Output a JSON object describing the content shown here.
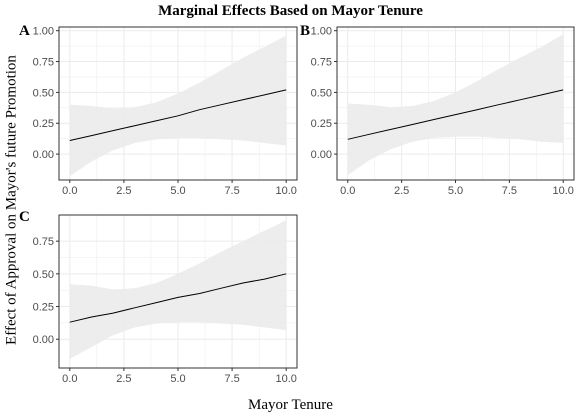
{
  "title": "Marginal Effects Based on Mayor Tenure",
  "ylabel": "Effect of Approval on Mayor's future Promotion",
  "xlabel": "Mayor Tenure",
  "colors": {
    "band": "#ebebeb",
    "line": "#000000",
    "grid": "#ebebeb",
    "border": "#333333",
    "tick_text": "#4d4d4d"
  },
  "chart_data": [
    {
      "type": "line",
      "panel": "A",
      "x_ticks": [
        "0.0",
        "2.5",
        "5.0",
        "7.5",
        "10.0"
      ],
      "y_ticks": [
        "0.00",
        "0.25",
        "0.50",
        "0.75",
        "1.00"
      ],
      "xlim": [
        -0.5,
        10.5
      ],
      "ylim": [
        -0.21,
        1.03
      ],
      "grid": true,
      "x": [
        0,
        1,
        2,
        3,
        4,
        5,
        6,
        7,
        8,
        9,
        10
      ],
      "y": [
        0.11,
        0.15,
        0.19,
        0.23,
        0.27,
        0.31,
        0.36,
        0.4,
        0.44,
        0.48,
        0.52
      ],
      "lower": [
        -0.18,
        -0.06,
        0.03,
        0.09,
        0.12,
        0.13,
        0.13,
        0.12,
        0.11,
        0.09,
        0.07
      ],
      "upper": [
        0.4,
        0.39,
        0.37,
        0.38,
        0.42,
        0.49,
        0.58,
        0.68,
        0.78,
        0.87,
        0.96
      ]
    },
    {
      "type": "line",
      "panel": "B",
      "x_ticks": [
        "0.0",
        "2.5",
        "5.0",
        "7.5",
        "10.0"
      ],
      "y_ticks": [
        "0.00",
        "0.25",
        "0.50",
        "0.75",
        "1.00"
      ],
      "xlim": [
        -0.5,
        10.5
      ],
      "ylim": [
        -0.21,
        1.03
      ],
      "grid": true,
      "x": [
        0,
        1,
        2,
        3,
        4,
        5,
        6,
        7,
        8,
        9,
        10
      ],
      "y": [
        0.12,
        0.16,
        0.2,
        0.24,
        0.28,
        0.32,
        0.36,
        0.4,
        0.44,
        0.48,
        0.52
      ],
      "lower": [
        -0.17,
        -0.05,
        0.04,
        0.1,
        0.13,
        0.14,
        0.14,
        0.13,
        0.12,
        0.1,
        0.09
      ],
      "upper": [
        0.41,
        0.4,
        0.38,
        0.39,
        0.43,
        0.5,
        0.59,
        0.69,
        0.78,
        0.87,
        0.97
      ]
    },
    {
      "type": "line",
      "panel": "C",
      "x_ticks": [
        "0.0",
        "2.5",
        "5.0",
        "7.5",
        "10.0"
      ],
      "y_ticks": [
        "0.00",
        "0.25",
        "0.50",
        "0.75"
      ],
      "xlim": [
        -0.5,
        10.5
      ],
      "ylim": [
        -0.22,
        0.95
      ],
      "grid": true,
      "x": [
        0,
        1,
        2,
        3,
        4,
        5,
        6,
        7,
        8,
        9,
        10
      ],
      "y": [
        0.13,
        0.17,
        0.2,
        0.24,
        0.28,
        0.32,
        0.35,
        0.39,
        0.43,
        0.46,
        0.5
      ],
      "lower": [
        -0.15,
        -0.06,
        0.03,
        0.09,
        0.12,
        0.13,
        0.13,
        0.12,
        0.11,
        0.09,
        0.07
      ],
      "upper": [
        0.42,
        0.41,
        0.38,
        0.39,
        0.43,
        0.5,
        0.58,
        0.67,
        0.75,
        0.83,
        0.91
      ]
    }
  ]
}
